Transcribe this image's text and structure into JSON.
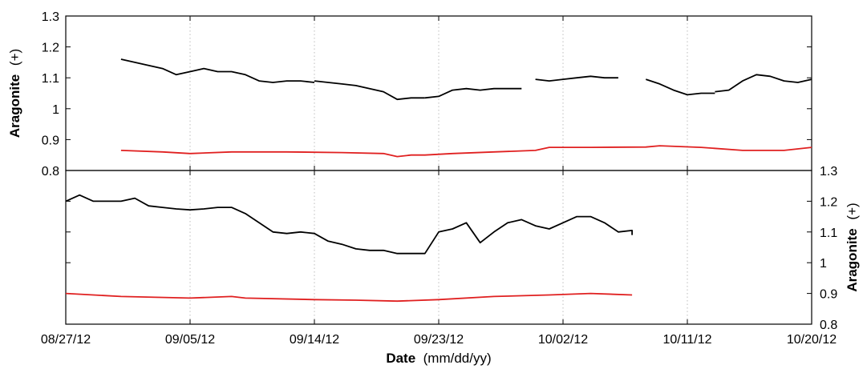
{
  "chart_data": [
    {
      "type": "line",
      "panel": "top",
      "ylabel": "Aragonite",
      "ylabel_unit": "(+)",
      "ylim": [
        0.8,
        1.3
      ],
      "yticks": [
        0.8,
        0.9,
        1,
        1.1,
        1.2,
        1.3
      ],
      "ytick_labels": [
        "0.8",
        "0.9",
        "1",
        "1.1",
        "1.2",
        "1.3"
      ],
      "yaxis_side": "left",
      "grid": "vertical dotted at date ticks",
      "series": [
        {
          "color": "#000000",
          "segments": [
            [
              [
                "2012-08-31",
                1.16
              ],
              [
                "2012-09-01",
                1.15
              ],
              [
                "2012-09-02",
                1.14
              ],
              [
                "2012-09-03",
                1.13
              ],
              [
                "2012-09-04",
                1.11
              ],
              [
                "2012-09-05",
                1.12
              ],
              [
                "2012-09-06",
                1.13
              ],
              [
                "2012-09-07",
                1.12
              ],
              [
                "2012-09-08",
                1.12
              ],
              [
                "2012-09-09",
                1.11
              ],
              [
                "2012-09-10",
                1.09
              ],
              [
                "2012-09-11",
                1.085
              ],
              [
                "2012-09-12",
                1.09
              ],
              [
                "2012-09-13",
                1.09
              ],
              [
                "2012-09-14",
                1.085
              ]
            ],
            [
              [
                "2012-09-14",
                1.09
              ],
              [
                "2012-09-15",
                1.085
              ],
              [
                "2012-09-16",
                1.08
              ],
              [
                "2012-09-17",
                1.075
              ],
              [
                "2012-09-18",
                1.065
              ],
              [
                "2012-09-19",
                1.055
              ],
              [
                "2012-09-20",
                1.03
              ],
              [
                "2012-09-21",
                1.035
              ],
              [
                "2012-09-22",
                1.035
              ]
            ],
            [
              [
                "2012-09-22",
                1.035
              ],
              [
                "2012-09-23",
                1.04
              ],
              [
                "2012-09-24",
                1.06
              ],
              [
                "2012-09-25",
                1.065
              ],
              [
                "2012-09-26",
                1.06
              ],
              [
                "2012-09-27",
                1.065
              ],
              [
                "2012-09-28",
                1.065
              ],
              [
                "2012-09-29",
                1.065
              ]
            ],
            [
              [
                "2012-09-30",
                1.095
              ],
              [
                "2012-10-01",
                1.09
              ],
              [
                "2012-10-02",
                1.095
              ],
              [
                "2012-10-03",
                1.1
              ],
              [
                "2012-10-04",
                1.105
              ],
              [
                "2012-10-05",
                1.1
              ],
              [
                "2012-10-06",
                1.1
              ]
            ],
            [
              [
                "2012-10-08",
                1.095
              ],
              [
                "2012-10-09",
                1.08
              ],
              [
                "2012-10-10",
                1.06
              ],
              [
                "2012-10-11",
                1.045
              ],
              [
                "2012-10-12",
                1.05
              ],
              [
                "2012-10-13",
                1.05
              ]
            ],
            [
              [
                "2012-10-13",
                1.055
              ],
              [
                "2012-10-14",
                1.06
              ],
              [
                "2012-10-15",
                1.09
              ],
              [
                "2012-10-16",
                1.11
              ],
              [
                "2012-10-17",
                1.105
              ],
              [
                "2012-10-18",
                1.09
              ],
              [
                "2012-10-19",
                1.085
              ],
              [
                "2012-10-20",
                1.095
              ]
            ]
          ]
        },
        {
          "color": "#e02020",
          "segments": [
            [
              [
                "2012-08-31",
                0.865
              ],
              [
                "2012-09-03",
                0.86
              ],
              [
                "2012-09-05",
                0.855
              ],
              [
                "2012-09-08",
                0.86
              ],
              [
                "2012-09-12",
                0.86
              ],
              [
                "2012-09-16",
                0.858
              ],
              [
                "2012-09-19",
                0.855
              ],
              [
                "2012-09-20",
                0.845
              ],
              [
                "2012-09-21",
                0.85
              ],
              [
                "2012-09-22",
                0.85
              ],
              [
                "2012-09-24",
                0.855
              ],
              [
                "2012-09-27",
                0.86
              ],
              [
                "2012-09-30",
                0.865
              ],
              [
                "2012-10-01",
                0.875
              ],
              [
                "2012-10-04",
                0.875
              ],
              [
                "2012-10-08",
                0.876
              ],
              [
                "2012-10-09",
                0.88
              ],
              [
                "2012-10-12",
                0.875
              ],
              [
                "2012-10-15",
                0.865
              ],
              [
                "2012-10-18",
                0.865
              ],
              [
                "2012-10-20",
                0.875
              ]
            ]
          ]
        }
      ]
    },
    {
      "type": "line",
      "panel": "bottom",
      "ylabel": "Aragonite",
      "ylabel_unit": "(+)",
      "ylim": [
        0.8,
        1.3
      ],
      "yticks": [
        0.8,
        0.9,
        1,
        1.1,
        1.2,
        1.3
      ],
      "ytick_labels": [
        "0.8",
        "0.9",
        "1",
        "1.1",
        "1.2",
        "1.3"
      ],
      "yaxis_side": "right",
      "grid": "vertical dotted at date ticks",
      "series": [
        {
          "color": "#000000",
          "segments": [
            [
              [
                "2012-08-27",
                1.2
              ],
              [
                "2012-08-28",
                1.22
              ],
              [
                "2012-08-29",
                1.2
              ],
              [
                "2012-08-30",
                1.2
              ],
              [
                "2012-08-31",
                1.2
              ],
              [
                "2012-09-01",
                1.21
              ],
              [
                "2012-09-02",
                1.185
              ],
              [
                "2012-09-03",
                1.18
              ],
              [
                "2012-09-04",
                1.175
              ],
              [
                "2012-09-05",
                1.172
              ],
              [
                "2012-09-06",
                1.175
              ],
              [
                "2012-09-07",
                1.18
              ],
              [
                "2012-09-08",
                1.18
              ],
              [
                "2012-09-09",
                1.16
              ],
              [
                "2012-09-10",
                1.13
              ],
              [
                "2012-09-11",
                1.1
              ],
              [
                "2012-09-12",
                1.095
              ],
              [
                "2012-09-13",
                1.1
              ],
              [
                "2012-09-14",
                1.095
              ],
              [
                "2012-09-15",
                1.07
              ],
              [
                "2012-09-16",
                1.06
              ],
              [
                "2012-09-17",
                1.045
              ],
              [
                "2012-09-18",
                1.04
              ],
              [
                "2012-09-19",
                1.04
              ],
              [
                "2012-09-20",
                1.03
              ],
              [
                "2012-09-21",
                1.03
              ],
              [
                "2012-09-22",
                1.03
              ],
              [
                "2012-09-23",
                1.1
              ],
              [
                "2012-09-24",
                1.11
              ],
              [
                "2012-09-25",
                1.13
              ],
              [
                "2012-09-26",
                1.065
              ],
              [
                "2012-09-27",
                1.1
              ],
              [
                "2012-09-28",
                1.13
              ],
              [
                "2012-09-29",
                1.14
              ],
              [
                "2012-09-30",
                1.12
              ],
              [
                "2012-10-01",
                1.11
              ],
              [
                "2012-10-02",
                1.13
              ],
              [
                "2012-10-03",
                1.15
              ],
              [
                "2012-10-04",
                1.15
              ],
              [
                "2012-10-05",
                1.13
              ],
              [
                "2012-10-06",
                1.1
              ],
              [
                "2012-10-07",
                1.105
              ],
              [
                "2012-10-07",
                1.09
              ]
            ]
          ]
        },
        {
          "color": "#e02020",
          "segments": [
            [
              [
                "2012-08-27",
                0.9
              ],
              [
                "2012-08-31",
                0.89
              ],
              [
                "2012-09-05",
                0.885
              ],
              [
                "2012-09-08",
                0.89
              ],
              [
                "2012-09-09",
                0.885
              ],
              [
                "2012-09-14",
                0.88
              ],
              [
                "2012-09-17",
                0.878
              ],
              [
                "2012-09-20",
                0.875
              ],
              [
                "2012-09-23",
                0.88
              ],
              [
                "2012-09-27",
                0.89
              ],
              [
                "2012-10-01",
                0.895
              ],
              [
                "2012-10-04",
                0.9
              ],
              [
                "2012-10-07",
                0.895
              ]
            ]
          ]
        }
      ]
    }
  ],
  "xaxis": {
    "label_bold": "Date",
    "label_rest": " (mm/dd/yy)",
    "xlim": [
      "2012-08-27",
      "2012-10-20"
    ],
    "ticks": [
      "2012-08-27",
      "2012-09-05",
      "2012-09-14",
      "2012-09-23",
      "2012-10-02",
      "2012-10-11",
      "2012-10-20"
    ],
    "tick_labels": [
      "08/27/12",
      "09/05/12",
      "09/14/12",
      "09/23/12",
      "10/02/12",
      "10/11/12",
      "10/20/12"
    ]
  }
}
